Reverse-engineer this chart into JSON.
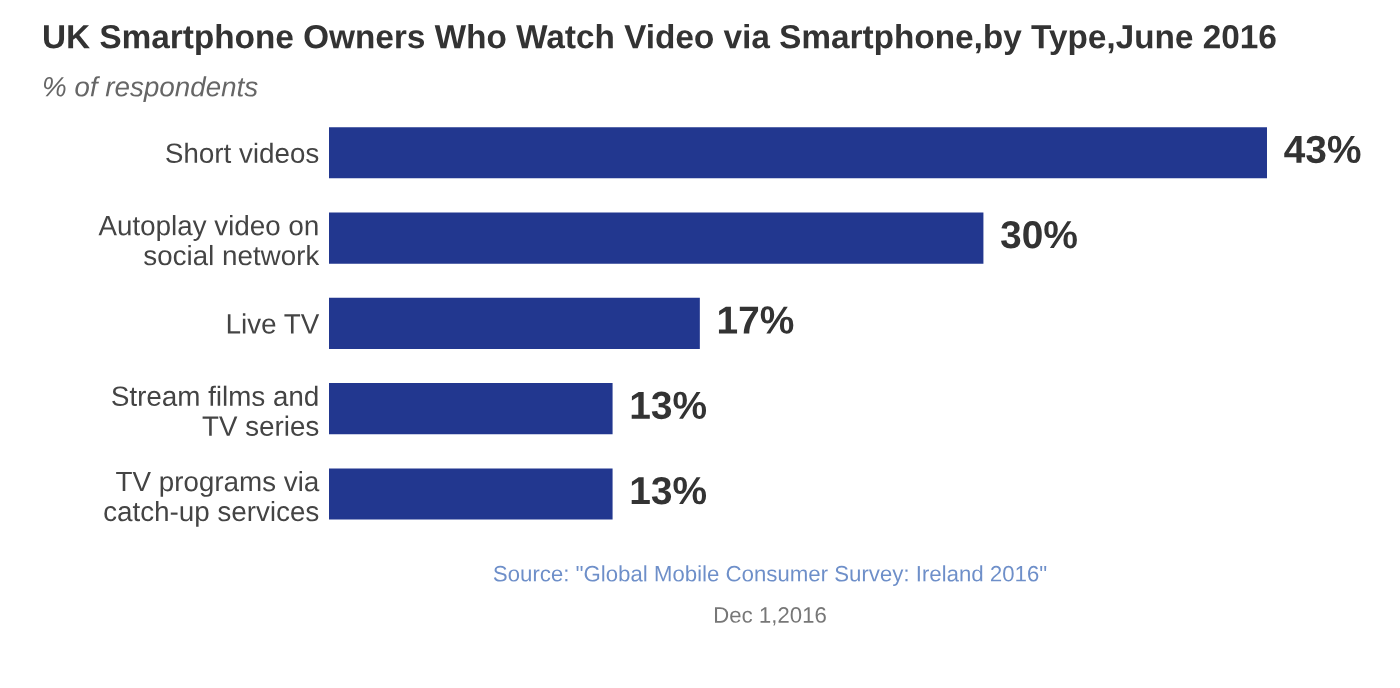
{
  "chart_data": {
    "type": "bar",
    "orientation": "horizontal",
    "title": "UK Smartphone Owners Who Watch Video via Smartphone,by Type,June 2016",
    "subtitle": "% of respondents",
    "categories": [
      "Short videos",
      "Autoplay video on\nsocial network",
      "Live TV",
      "Stream films and\nTV series",
      "TV programs via\ncatch-up services"
    ],
    "values": [
      43,
      30,
      17,
      13,
      13
    ],
    "color": "#22378f",
    "data_labels": true,
    "value_labels": [
      "43%",
      "30%",
      "17%",
      "13%",
      "13%"
    ],
    "grid": false,
    "tick_labels": "y",
    "annotations": [
      "Source: \"Global Mobile Consumer Survey: Ireland 2016\"",
      "Dec 1,2016"
    ]
  }
}
